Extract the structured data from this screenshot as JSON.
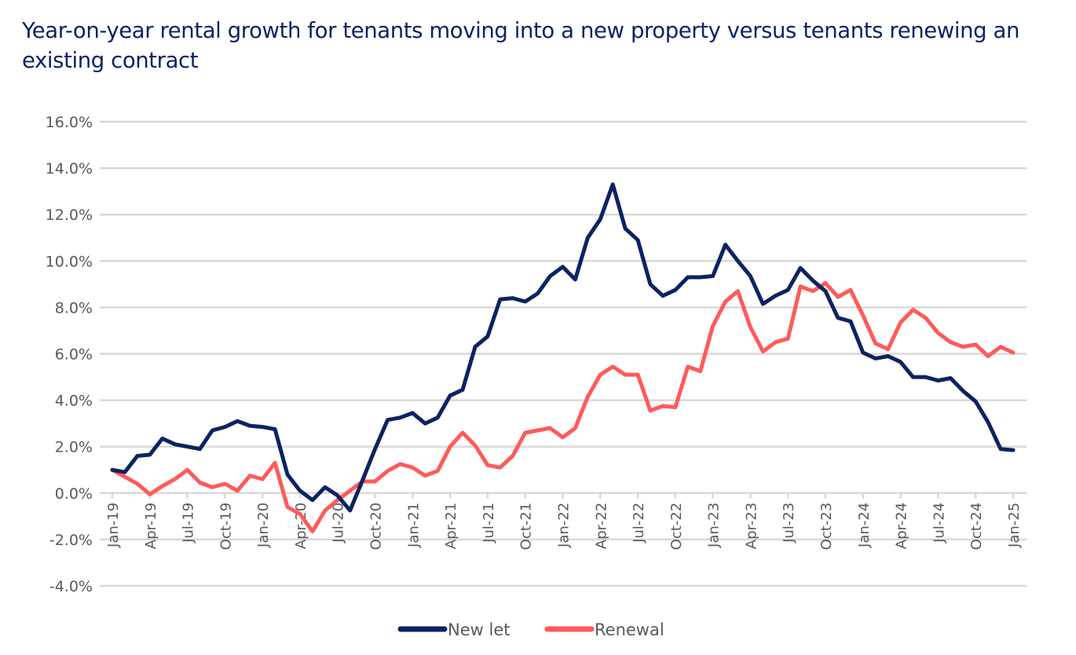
{
  "chart_data": {
    "type": "line",
    "title": "Year-on-year rental growth for tenants moving into a new property versus tenants renewing an existing contract",
    "xlabel": "",
    "ylabel": "",
    "ylim": [
      -4.0,
      16.0
    ],
    "y_ticks": [
      16.0,
      14.0,
      12.0,
      10.0,
      8.0,
      6.0,
      4.0,
      2.0,
      0.0,
      -2.0,
      -4.0
    ],
    "y_tick_labels": [
      "16.0%",
      "14.0%",
      "12.0%",
      "10.0%",
      "8.0%",
      "6.0%",
      "4.0%",
      "2.0%",
      "0.0%",
      "-2.0%",
      "-4.0%"
    ],
    "x_tick_labels": [
      "Jan-19",
      "Apr-19",
      "Jul-19",
      "Oct-19",
      "Jan-20",
      "Apr-20",
      "Jul-20",
      "Oct-20",
      "Jan-21",
      "Apr-21",
      "Jul-21",
      "Oct-21",
      "Jan-22",
      "Apr-22",
      "Jul-22",
      "Oct-22",
      "Jan-23",
      "Apr-23",
      "Jul-23",
      "Oct-23",
      "Jan-24",
      "Apr-24",
      "Jul-24",
      "Oct-24",
      "Jan-25"
    ],
    "x": [
      "Jan-19",
      "Feb-19",
      "Mar-19",
      "Apr-19",
      "May-19",
      "Jun-19",
      "Jul-19",
      "Aug-19",
      "Sep-19",
      "Oct-19",
      "Nov-19",
      "Dec-19",
      "Jan-20",
      "Feb-20",
      "Mar-20",
      "Apr-20",
      "May-20",
      "Jun-20",
      "Jul-20",
      "Aug-20",
      "Sep-20",
      "Oct-20",
      "Nov-20",
      "Dec-20",
      "Jan-21",
      "Feb-21",
      "Mar-21",
      "Apr-21",
      "May-21",
      "Jun-21",
      "Jul-21",
      "Aug-21",
      "Sep-21",
      "Oct-21",
      "Nov-21",
      "Dec-21",
      "Jan-22",
      "Feb-22",
      "Mar-22",
      "Apr-22",
      "May-22",
      "Jun-22",
      "Jul-22",
      "Aug-22",
      "Sep-22",
      "Oct-22",
      "Nov-22",
      "Dec-22",
      "Jan-23",
      "Feb-23",
      "Mar-23",
      "Apr-23",
      "May-23",
      "Jun-23",
      "Jul-23",
      "Aug-23",
      "Sep-23",
      "Oct-23",
      "Nov-23",
      "Dec-23",
      "Jan-24",
      "Feb-24",
      "Mar-24",
      "Apr-24",
      "May-24",
      "Jun-24",
      "Jul-24",
      "Aug-24",
      "Sep-24",
      "Oct-24",
      "Nov-24",
      "Dec-24",
      "Jan-25"
    ],
    "series": [
      {
        "name": "New let",
        "color": "#0d2261",
        "values": [
          1.0,
          0.9,
          1.6,
          1.65,
          2.35,
          2.1,
          2.0,
          1.9,
          2.7,
          2.85,
          3.1,
          2.9,
          2.85,
          2.75,
          0.8,
          0.1,
          -0.3,
          0.25,
          -0.1,
          -0.75,
          0.55,
          1.9,
          3.15,
          3.25,
          3.45,
          3.0,
          3.25,
          4.2,
          4.45,
          6.3,
          6.75,
          8.35,
          8.4,
          8.25,
          8.6,
          9.35,
          9.75,
          9.2,
          11.0,
          11.8,
          13.3,
          11.4,
          10.9,
          9.0,
          8.5,
          8.75,
          9.3,
          9.3,
          9.35,
          10.7,
          10.0,
          9.35,
          8.15,
          8.5,
          8.75,
          9.7,
          9.15,
          8.7,
          7.55,
          7.4,
          6.05,
          5.8,
          5.9,
          5.65,
          5.0,
          5.0,
          4.85,
          4.95,
          4.4,
          3.95,
          3.05,
          1.9,
          1.85
        ]
      },
      {
        "name": "Renewal",
        "color": "#ff5a5a",
        "values": [
          1.0,
          0.7,
          0.4,
          -0.05,
          0.3,
          0.6,
          1.0,
          0.45,
          0.25,
          0.4,
          0.1,
          0.75,
          0.6,
          1.3,
          -0.6,
          -0.9,
          -1.65,
          -0.75,
          -0.3,
          0.1,
          0.5,
          0.5,
          0.95,
          1.25,
          1.1,
          0.75,
          0.95,
          2.0,
          2.6,
          2.05,
          1.2,
          1.1,
          1.6,
          2.6,
          2.7,
          2.8,
          2.4,
          2.8,
          4.15,
          5.1,
          5.45,
          5.1,
          5.1,
          3.55,
          3.75,
          3.7,
          5.45,
          5.25,
          7.2,
          8.25,
          8.7,
          7.15,
          6.1,
          6.5,
          6.65,
          8.9,
          8.7,
          9.05,
          8.45,
          8.75,
          7.65,
          6.45,
          6.2,
          7.35,
          7.9,
          7.55,
          6.9,
          6.5,
          6.3,
          6.4,
          5.9,
          6.3,
          6.05
        ]
      }
    ],
    "grid": true,
    "legend": "bottom"
  }
}
